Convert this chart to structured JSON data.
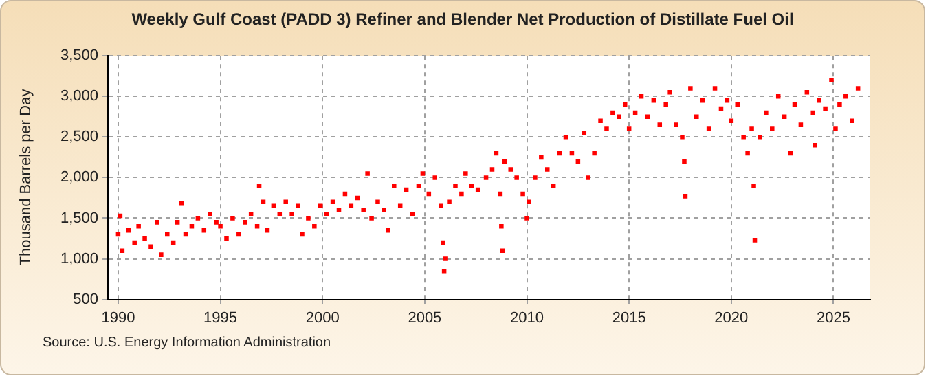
{
  "chart_data": {
    "type": "scatter",
    "title": "Weekly Gulf Coast (PADD 3) Refiner and Blender Net Production of Distillate Fuel Oil",
    "ylabel": "Thousand Barrels per Day",
    "annotations": [
      "Source: U.S. Energy Information Administration"
    ],
    "x": [
      1990.0,
      1990.1,
      1990.2,
      1990.5,
      1990.8,
      1991.0,
      1991.3,
      1991.6,
      1991.9,
      1992.1,
      1992.4,
      1992.7,
      1992.9,
      1993.1,
      1993.3,
      1993.6,
      1993.9,
      1994.2,
      1994.5,
      1994.8,
      1995.0,
      1995.3,
      1995.6,
      1995.9,
      1996.2,
      1996.5,
      1996.8,
      1996.9,
      1997.1,
      1997.3,
      1997.6,
      1997.9,
      1998.2,
      1998.5,
      1998.8,
      1999.0,
      1999.3,
      1999.6,
      1999.9,
      2000.2,
      2000.5,
      2000.8,
      2001.1,
      2001.4,
      2001.7,
      2002.0,
      2002.2,
      2002.4,
      2002.7,
      2003.0,
      2003.2,
      2003.5,
      2003.8,
      2004.1,
      2004.4,
      2004.7,
      2004.9,
      2005.2,
      2005.5,
      2005.8,
      2005.9,
      2005.95,
      2006.0,
      2006.2,
      2006.5,
      2006.8,
      2007.0,
      2007.3,
      2007.6,
      2008.0,
      2008.3,
      2008.5,
      2008.7,
      2008.75,
      2008.8,
      2008.9,
      2009.2,
      2009.5,
      2009.8,
      2010.0,
      2010.1,
      2010.4,
      2010.7,
      2011.0,
      2011.3,
      2011.6,
      2011.9,
      2012.2,
      2012.5,
      2012.8,
      2013.0,
      2013.3,
      2013.6,
      2013.9,
      2014.2,
      2014.5,
      2014.8,
      2015.0,
      2015.3,
      2015.6,
      2015.9,
      2016.2,
      2016.5,
      2016.8,
      2017.0,
      2017.3,
      2017.6,
      2017.7,
      2017.75,
      2018.0,
      2018.3,
      2018.6,
      2018.9,
      2019.2,
      2019.5,
      2019.8,
      2020.0,
      2020.3,
      2020.6,
      2020.8,
      2021.0,
      2021.1,
      2021.15,
      2021.4,
      2021.7,
      2022.0,
      2022.3,
      2022.6,
      2022.9,
      2023.1,
      2023.4,
      2023.7,
      2024.0,
      2024.1,
      2024.3,
      2024.6,
      2024.9,
      2025.1,
      2025.3,
      2025.6,
      2025.9,
      2026.2
    ],
    "series": [
      {
        "color": "#ff0000",
        "values": [
          1300,
          1530,
          1100,
          1350,
          1200,
          1400,
          1250,
          1150,
          1450,
          1050,
          1300,
          1200,
          1450,
          1680,
          1300,
          1400,
          1500,
          1350,
          1550,
          1450,
          1400,
          1250,
          1500,
          1300,
          1450,
          1550,
          1400,
          1900,
          1700,
          1350,
          1650,
          1550,
          1700,
          1550,
          1650,
          1300,
          1500,
          1400,
          1650,
          1550,
          1700,
          1600,
          1800,
          1650,
          1750,
          1600,
          2050,
          1500,
          1700,
          1600,
          1350,
          1900,
          1650,
          1850,
          1550,
          1900,
          2050,
          1800,
          2000,
          1650,
          1200,
          850,
          1000,
          1700,
          1900,
          1800,
          2050,
          1900,
          1850,
          2000,
          2100,
          2300,
          1800,
          1400,
          1100,
          2200,
          2100,
          2000,
          1800,
          1500,
          1700,
          2000,
          2250,
          2100,
          1900,
          2300,
          2500,
          2300,
          2200,
          2550,
          2000,
          2300,
          2700,
          2600,
          2800,
          2750,
          2900,
          2600,
          2800,
          3000,
          2750,
          2950,
          2650,
          2900,
          3050,
          2650,
          2500,
          2200,
          1770,
          3100,
          2750,
          2950,
          2600,
          3100,
          2850,
          2950,
          2700,
          2900,
          2500,
          2300,
          2600,
          1900,
          1230,
          2500,
          2800,
          2600,
          3000,
          2750,
          2300,
          2900,
          2650,
          3050,
          2800,
          2400,
          2950,
          2850,
          3200,
          2600,
          2900,
          3000,
          2700,
          3100
        ]
      }
    ],
    "xlim": [
      1989.5,
      2026.8
    ],
    "xticks": [
      1990,
      1995,
      2000,
      2005,
      2010,
      2015,
      2020,
      2025
    ],
    "ylim": [
      500,
      3500
    ],
    "yticks": [
      {
        "value": 500,
        "label": "500"
      },
      {
        "value": 1000,
        "label": "1,000"
      },
      {
        "value": 1500,
        "label": "1,500"
      },
      {
        "value": 2000,
        "label": "2,000"
      },
      {
        "value": 2500,
        "label": "2,500"
      },
      {
        "value": 3000,
        "label": "3,000"
      },
      {
        "value": 3500,
        "label": "3,500"
      }
    ],
    "grid": true,
    "marker": "square"
  }
}
